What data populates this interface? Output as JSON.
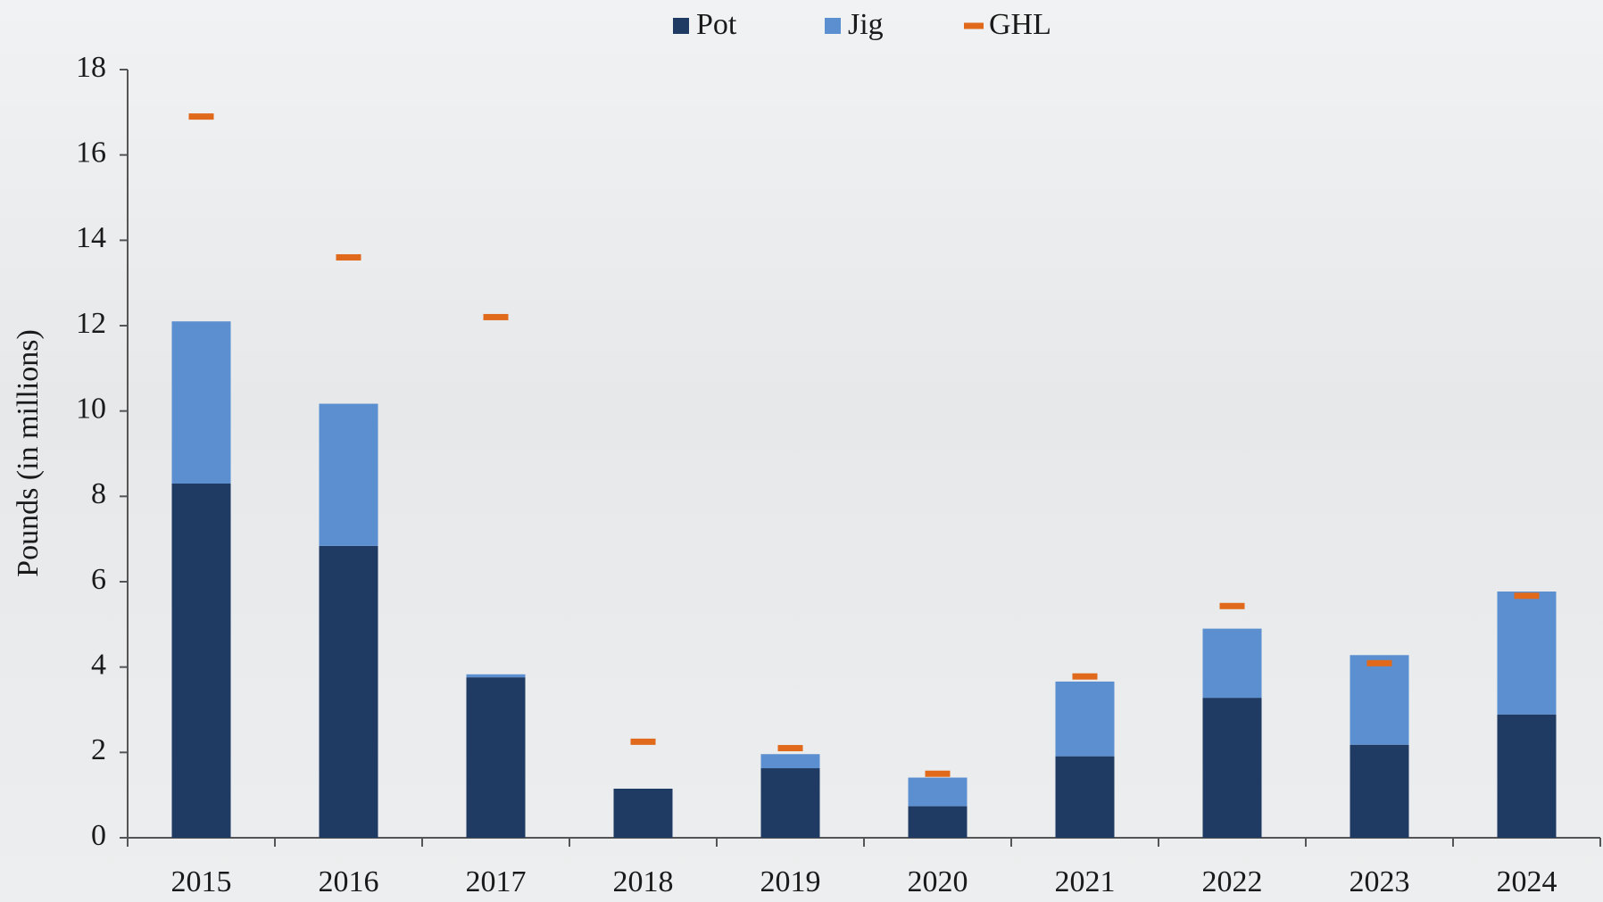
{
  "chart_data": {
    "type": "bar",
    "stacked": true,
    "ylabel": "Pounds (in millions)",
    "categories": [
      "2015",
      "2016",
      "2017",
      "2018",
      "2019",
      "2020",
      "2021",
      "2022",
      "2023",
      "2024"
    ],
    "series": [
      {
        "name": "Pot",
        "color": "#1f3b63",
        "kind": "bar",
        "values": [
          8.3,
          6.84,
          3.76,
          1.15,
          1.63,
          0.74,
          1.91,
          3.28,
          2.18,
          2.89
        ]
      },
      {
        "name": "Jig",
        "color": "#5b8fd0",
        "kind": "bar",
        "values": [
          3.8,
          3.33,
          0.07,
          0,
          0.33,
          0.67,
          1.75,
          1.62,
          2.1,
          2.88
        ]
      },
      {
        "name": "GHL",
        "color": "#e0691c",
        "kind": "dash",
        "values": [
          16.9,
          13.6,
          12.2,
          2.25,
          2.1,
          1.5,
          3.78,
          5.43,
          4.09,
          5.67
        ]
      }
    ],
    "ylim": [
      0,
      18
    ],
    "yticks": [
      0,
      2,
      4,
      6,
      8,
      10,
      12,
      14,
      16,
      18
    ],
    "legend": "top"
  }
}
